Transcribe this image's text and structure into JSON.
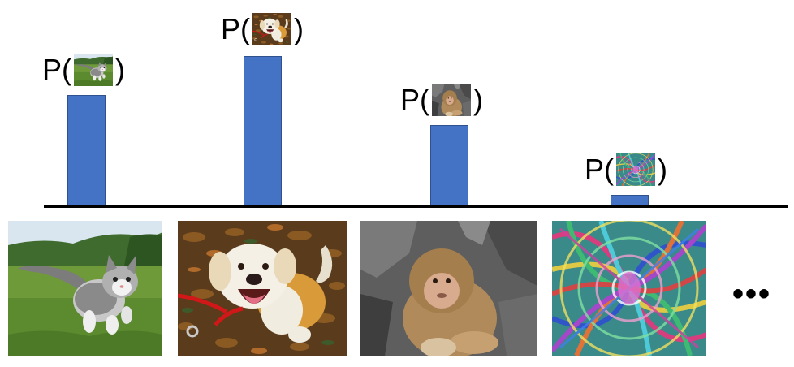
{
  "labels": {
    "p_open": "P(",
    "p_close": ")",
    "ellipsis": "•••"
  },
  "items": [
    {
      "subject": "cat-photo"
    },
    {
      "subject": "dog-photo"
    },
    {
      "subject": "monkey-photo"
    },
    {
      "subject": "noise-pattern"
    }
  ],
  "colors": {
    "bar": "#4472c4",
    "bar_border": "#2f528f",
    "axis": "#000000"
  }
}
